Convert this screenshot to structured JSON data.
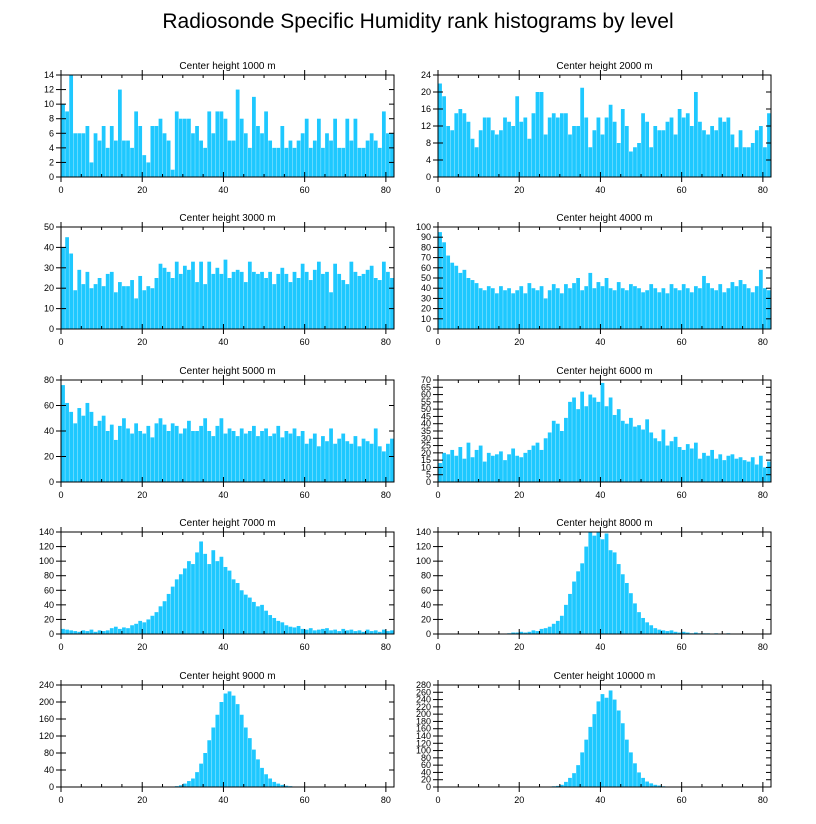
{
  "title": "Radiosonde Specific Humidity rank histograms by level",
  "bar_color": "#1ec8ff",
  "chart_data": [
    {
      "type": "bar",
      "title": "Center height 1000 m",
      "xlim": [
        0,
        82
      ],
      "ylim": [
        0,
        14
      ],
      "xticks": [
        0,
        20,
        40,
        60,
        80
      ],
      "yticks": [
        0,
        2,
        4,
        6,
        8,
        10,
        12,
        14
      ],
      "values": [
        10,
        9,
        14,
        6,
        6,
        6,
        7,
        2,
        6,
        5,
        7,
        4,
        7,
        5,
        12,
        5,
        5,
        4,
        9,
        7,
        3,
        2,
        7,
        7,
        8,
        6,
        5,
        1,
        9,
        8,
        8,
        8,
        6,
        7,
        5,
        4,
        9,
        6,
        9,
        9,
        8,
        5,
        5,
        12,
        8,
        6,
        4,
        11,
        7,
        6,
        9,
        5,
        4,
        4,
        7,
        4,
        5,
        4,
        5,
        6,
        8,
        4,
        5,
        8,
        4,
        6,
        5,
        8,
        4,
        4,
        8,
        5,
        8,
        4,
        4,
        5,
        6,
        5,
        4,
        9,
        6,
        6
      ]
    },
    {
      "type": "bar",
      "title": "Center height 2000 m",
      "xlim": [
        0,
        82
      ],
      "ylim": [
        0,
        24
      ],
      "xticks": [
        0,
        20,
        40,
        60,
        80
      ],
      "yticks": [
        0,
        4,
        8,
        12,
        16,
        20,
        24
      ],
      "values": [
        22,
        19,
        12,
        11,
        15,
        16,
        15,
        13,
        9,
        7,
        11,
        14,
        14,
        11,
        10,
        11,
        14,
        13,
        12,
        19,
        13,
        14,
        9,
        15,
        20,
        20,
        10,
        14,
        15,
        14,
        15,
        15,
        10,
        12,
        12,
        21,
        14,
        7,
        11,
        14,
        10,
        14,
        17,
        13,
        8,
        16,
        12,
        6,
        7,
        8,
        15,
        13,
        7,
        12,
        11,
        11,
        13,
        14,
        10,
        16,
        14,
        15,
        12,
        20,
        13,
        11,
        10,
        12,
        11,
        14,
        13,
        14,
        10,
        7,
        11,
        7,
        7,
        8,
        11,
        12,
        7,
        15
      ]
    },
    {
      "type": "bar",
      "title": "Center height 3000 m",
      "xlim": [
        0,
        82
      ],
      "ylim": [
        0,
        50
      ],
      "xticks": [
        0,
        20,
        40,
        60,
        80
      ],
      "yticks": [
        0,
        10,
        20,
        30,
        40,
        50
      ],
      "values": [
        40,
        45,
        37,
        19,
        29,
        22,
        28,
        20,
        22,
        25,
        21,
        27,
        28,
        18,
        23,
        21,
        21,
        24,
        15,
        26,
        19,
        21,
        20,
        25,
        32,
        30,
        28,
        25,
        33,
        27,
        31,
        29,
        33,
        23,
        33,
        22,
        33,
        27,
        30,
        27,
        34,
        25,
        28,
        29,
        28,
        23,
        33,
        28,
        27,
        28,
        25,
        28,
        22,
        27,
        30,
        27,
        23,
        28,
        25,
        32,
        28,
        24,
        29,
        33,
        27,
        28,
        18,
        32,
        27,
        24,
        22,
        33,
        28,
        26,
        27,
        29,
        31,
        25,
        24,
        33,
        28,
        25
      ]
    },
    {
      "type": "bar",
      "title": "Center height 4000 m",
      "xlim": [
        0,
        82
      ],
      "ylim": [
        0,
        100
      ],
      "xticks": [
        0,
        20,
        40,
        60,
        80
      ],
      "yticks": [
        0,
        10,
        20,
        30,
        40,
        50,
        60,
        70,
        80,
        90,
        100
      ],
      "values": [
        95,
        85,
        72,
        65,
        62,
        55,
        58,
        50,
        48,
        45,
        40,
        38,
        42,
        40,
        35,
        42,
        38,
        40,
        35,
        38,
        42,
        35,
        45,
        40,
        38,
        42,
        30,
        38,
        44,
        40,
        35,
        44,
        40,
        45,
        50,
        38,
        42,
        55,
        40,
        46,
        42,
        50,
        40,
        38,
        46,
        40,
        38,
        44,
        42,
        40,
        36,
        38,
        44,
        40,
        36,
        40,
        35,
        44,
        40,
        38,
        44,
        40,
        36,
        42,
        40,
        52,
        45,
        40,
        38,
        44,
        36,
        40,
        46,
        42,
        48,
        44,
        40,
        36,
        42,
        58,
        40,
        38
      ]
    },
    {
      "type": "bar",
      "title": "Center height 5000 m",
      "xlim": [
        0,
        82
      ],
      "ylim": [
        0,
        80
      ],
      "xticks": [
        0,
        20,
        40,
        60,
        80
      ],
      "yticks": [
        0,
        20,
        40,
        60,
        80
      ],
      "values": [
        76,
        62,
        55,
        46,
        58,
        52,
        62,
        55,
        44,
        48,
        52,
        40,
        45,
        33,
        44,
        50,
        42,
        38,
        46,
        40,
        38,
        44,
        35,
        46,
        50,
        45,
        40,
        46,
        44,
        38,
        42,
        48,
        40,
        40,
        44,
        50,
        40,
        36,
        44,
        50,
        38,
        42,
        40,
        36,
        42,
        38,
        40,
        44,
        36,
        40,
        42,
        36,
        38,
        44,
        35,
        40,
        38,
        42,
        36,
        40,
        30,
        34,
        38,
        28,
        36,
        32,
        42,
        30,
        34,
        38,
        32,
        30,
        36,
        28,
        34,
        32,
        30,
        42,
        28,
        24,
        30,
        34
      ]
    },
    {
      "type": "bar",
      "title": "Center height 6000 m",
      "xlim": [
        0,
        82
      ],
      "ylim": [
        0,
        70
      ],
      "xticks": [
        0,
        20,
        40,
        60,
        80
      ],
      "yticks": [
        0,
        5,
        10,
        15,
        20,
        25,
        30,
        35,
        40,
        45,
        50,
        55,
        60,
        65,
        70
      ],
      "values": [
        13,
        20,
        19,
        22,
        18,
        24,
        16,
        27,
        17,
        22,
        25,
        14,
        20,
        18,
        19,
        21,
        15,
        19,
        23,
        18,
        17,
        20,
        22,
        25,
        27,
        22,
        30,
        34,
        42,
        40,
        35,
        44,
        55,
        58,
        50,
        62,
        52,
        60,
        58,
        55,
        68,
        52,
        58,
        46,
        50,
        42,
        40,
        44,
        38,
        39,
        36,
        43,
        34,
        30,
        28,
        36,
        25,
        28,
        31,
        24,
        22,
        26,
        23,
        27,
        16,
        20,
        18,
        22,
        16,
        19,
        15,
        18,
        19,
        16,
        17,
        15,
        14,
        17,
        12,
        18,
        10,
        14
      ]
    },
    {
      "type": "bar",
      "title": "Center height 7000 m",
      "xlim": [
        0,
        82
      ],
      "ylim": [
        0,
        140
      ],
      "xticks": [
        0,
        20,
        40,
        60,
        80
      ],
      "yticks": [
        0,
        20,
        40,
        60,
        80,
        100,
        120,
        140
      ],
      "values": [
        7,
        6,
        5,
        4,
        3,
        5,
        4,
        6,
        3,
        5,
        4,
        5,
        8,
        10,
        7,
        9,
        8,
        12,
        14,
        18,
        16,
        20,
        25,
        30,
        38,
        45,
        55,
        65,
        75,
        82,
        90,
        100,
        96,
        112,
        127,
        110,
        96,
        115,
        100,
        106,
        92,
        87,
        75,
        70,
        60,
        54,
        50,
        44,
        38,
        40,
        32,
        26,
        22,
        18,
        16,
        12,
        10,
        9,
        11,
        7,
        6,
        8,
        5,
        6,
        7,
        8,
        5,
        6,
        4,
        7,
        5,
        6,
        4,
        5,
        3,
        6,
        4,
        5,
        3,
        6,
        4,
        5
      ]
    },
    {
      "type": "bar",
      "title": "Center height 8000 m",
      "xlim": [
        0,
        82
      ],
      "ylim": [
        0,
        140
      ],
      "xticks": [
        0,
        20,
        40,
        60,
        80
      ],
      "yticks": [
        0,
        20,
        40,
        60,
        80,
        100,
        120,
        140
      ],
      "values": [
        0,
        0,
        0,
        0,
        0,
        0,
        0,
        0,
        0,
        0,
        0,
        0,
        0,
        0,
        0,
        0,
        0,
        1,
        2,
        2,
        3,
        2,
        3,
        5,
        4,
        7,
        8,
        10,
        14,
        18,
        25,
        40,
        55,
        72,
        86,
        97,
        120,
        140,
        135,
        140,
        130,
        138,
        115,
        112,
        96,
        82,
        70,
        56,
        42,
        30,
        22,
        16,
        12,
        8,
        6,
        5,
        4,
        5,
        3,
        2,
        3,
        2,
        1,
        2,
        1,
        1,
        1,
        0,
        1,
        0,
        0,
        1,
        0,
        0,
        0,
        0,
        0,
        0,
        0,
        0,
        0,
        0
      ]
    },
    {
      "type": "bar",
      "title": "Center height 9000 m",
      "xlim": [
        0,
        82
      ],
      "ylim": [
        0,
        240
      ],
      "xticks": [
        0,
        20,
        40,
        60,
        80
      ],
      "yticks": [
        0,
        40,
        80,
        120,
        160,
        200,
        240
      ],
      "values": [
        0,
        0,
        0,
        0,
        0,
        0,
        0,
        0,
        0,
        0,
        0,
        0,
        0,
        0,
        0,
        0,
        0,
        0,
        0,
        0,
        0,
        0,
        0,
        0,
        0,
        0,
        0,
        1,
        2,
        4,
        8,
        14,
        20,
        35,
        55,
        80,
        110,
        140,
        170,
        200,
        220,
        225,
        215,
        195,
        170,
        140,
        115,
        88,
        65,
        45,
        30,
        20,
        12,
        8,
        5,
        3,
        2,
        1,
        1,
        0,
        0,
        0,
        0,
        0,
        0,
        0,
        0,
        0,
        0,
        0,
        0,
        0,
        0,
        0,
        0,
        0,
        0,
        0,
        0,
        0,
        0,
        0
      ]
    },
    {
      "type": "bar",
      "title": "Center height 10000 m",
      "xlim": [
        0,
        82
      ],
      "ylim": [
        0,
        280
      ],
      "xticks": [
        0,
        20,
        40,
        60,
        80
      ],
      "yticks": [
        0,
        20,
        40,
        60,
        80,
        100,
        120,
        140,
        160,
        180,
        200,
        220,
        240,
        260,
        280
      ],
      "values": [
        0,
        0,
        0,
        0,
        0,
        0,
        0,
        0,
        0,
        0,
        0,
        0,
        0,
        0,
        0,
        0,
        0,
        0,
        0,
        0,
        0,
        0,
        0,
        0,
        0,
        0,
        0,
        0,
        2,
        3,
        6,
        14,
        25,
        38,
        60,
        95,
        130,
        165,
        200,
        235,
        255,
        245,
        265,
        240,
        210,
        175,
        130,
        95,
        65,
        40,
        25,
        15,
        10,
        6,
        4,
        2,
        1,
        1,
        0,
        0,
        0,
        0,
        0,
        0,
        0,
        0,
        0,
        0,
        0,
        0,
        0,
        0,
        0,
        0,
        0,
        0,
        0,
        0,
        0,
        0,
        0,
        0
      ]
    }
  ]
}
